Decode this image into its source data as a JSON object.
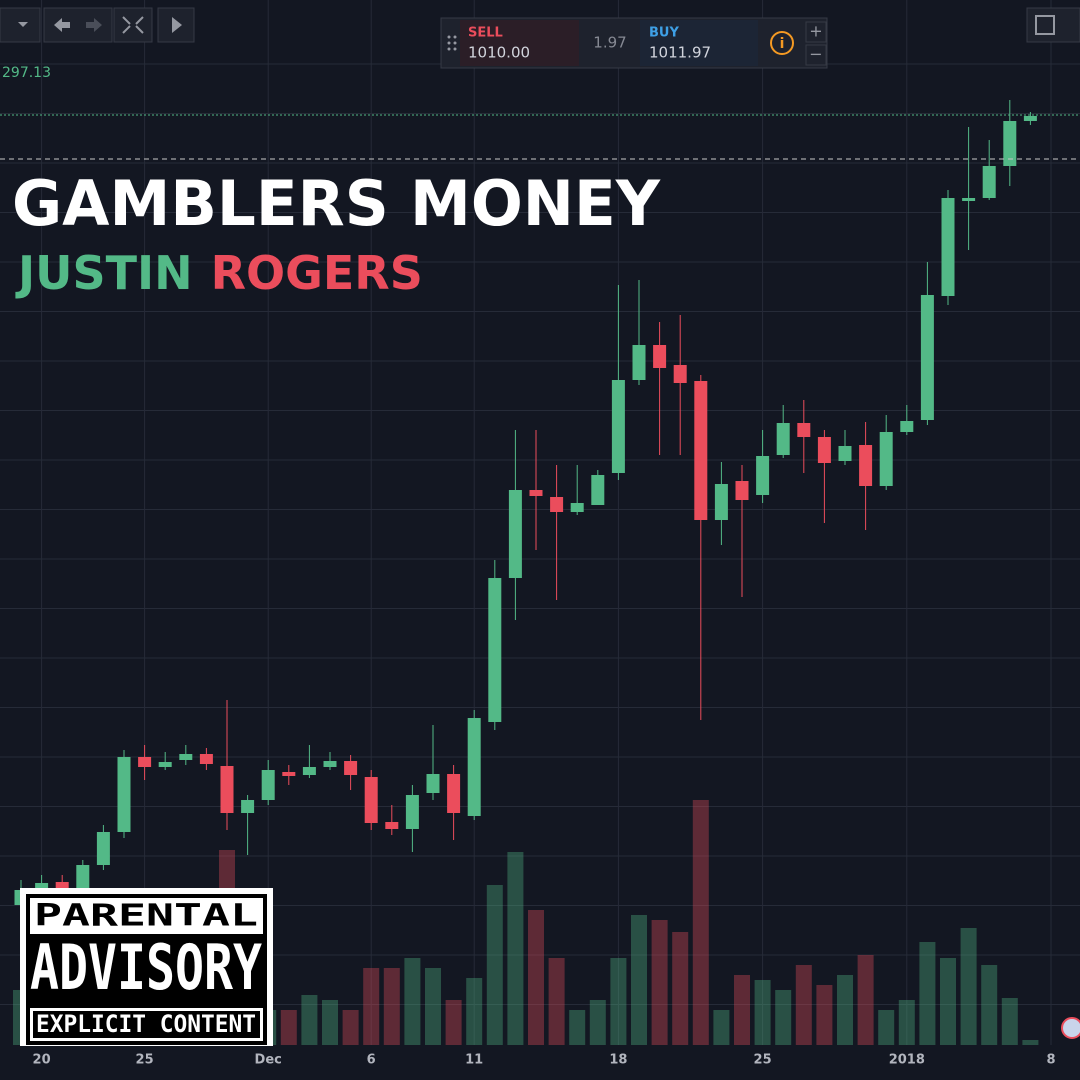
{
  "toolbar": {
    "sell_label": "SELL",
    "sell_price": "1010.00",
    "spread": "1.97",
    "buy_label": "BUY",
    "buy_price": "1011.97",
    "plus": "+",
    "minus": "−"
  },
  "price_label": "297.13",
  "cover": {
    "title": "GAMBLERS MONEY",
    "artist_first": "JUSTIN",
    "artist_last": "ROGERS",
    "advisory": [
      "PARENTAL",
      "ADVISORY",
      "EXPLICIT CONTENT"
    ]
  },
  "chart_data": {
    "type": "candlestick",
    "categories": [
      null,
      "20",
      null,
      null,
      null,
      null,
      "25",
      null,
      null,
      null,
      null,
      null,
      "Dec",
      null,
      null,
      null,
      null,
      "6",
      null,
      null,
      null,
      null,
      "11",
      null,
      null,
      null,
      null,
      null,
      null,
      "18",
      null,
      null,
      null,
      null,
      null,
      null,
      "25",
      null,
      null,
      null,
      null,
      null,
      null,
      "2018",
      null,
      null,
      null,
      null,
      null,
      null,
      "8"
    ],
    "open": [
      13.5,
      15,
      15.8,
      15.2,
      17.5,
      20.8,
      28.3,
      27.3,
      28,
      28.6,
      27.4,
      22.7,
      24,
      26.8,
      26.5,
      27.3,
      27.9,
      26.3,
      21.8,
      21.1,
      24.7,
      26.6,
      22.4,
      31.8,
      46.2,
      55,
      54.3,
      52.8,
      53.5,
      56.7,
      66,
      69.5,
      67.5,
      65.9,
      52,
      55.9,
      54.5,
      58.5,
      61.7,
      60.3,
      57.9,
      59.5,
      55.4,
      60.8,
      62,
      74.4,
      83.9,
      84.2,
      87.4,
      91.9,
      null
    ],
    "high": [
      16,
      16.5,
      16.5,
      18,
      21.5,
      29,
      29.5,
      28.8,
      29.5,
      29.2,
      34,
      24.5,
      28,
      27.5,
      29.5,
      28.8,
      28.5,
      27,
      23.5,
      25.5,
      31.5,
      27.5,
      33,
      48,
      61,
      61,
      57.5,
      57.5,
      57,
      75.5,
      76,
      71.8,
      72.5,
      66.5,
      57.8,
      57.5,
      61,
      63.5,
      64,
      61,
      61,
      61.8,
      62.5,
      63.5,
      77.8,
      85,
      91.3,
      90,
      94,
      92.8,
      null
    ],
    "low": [
      12.5,
      14.5,
      14.5,
      14.5,
      17,
      20.2,
      26,
      27,
      27.5,
      27,
      21,
      18.5,
      23.5,
      25.5,
      26.2,
      27,
      25,
      21,
      20.5,
      18.8,
      24,
      20,
      22,
      31,
      42,
      49,
      44,
      52.5,
      53.5,
      56,
      65.5,
      58.5,
      58.5,
      32,
      49.5,
      44.3,
      53.7,
      58.2,
      56.7,
      51.7,
      57.5,
      51,
      55,
      60.5,
      61.5,
      73.5,
      79,
      84,
      85.4,
      91.5,
      null
    ],
    "close": [
      15,
      15.7,
      15.2,
      17.5,
      20.8,
      28.3,
      27.3,
      27.8,
      28.6,
      27.6,
      22.7,
      24,
      27,
      26.4,
      27.3,
      27.9,
      26.5,
      21.7,
      21.1,
      24.5,
      26.6,
      22.7,
      32.2,
      46.2,
      55,
      54.4,
      52.8,
      53.7,
      56.5,
      66,
      69.5,
      67.2,
      65.7,
      52,
      55.6,
      54,
      58.4,
      61.7,
      60.3,
      57.7,
      59.4,
      55.4,
      60.8,
      61.9,
      74.5,
      84.2,
      84.2,
      87.4,
      91.9,
      92.4,
      null
    ],
    "volume": [
      5.5,
      4.5,
      5.5,
      7,
      8.5,
      10.5,
      11.5,
      8.5,
      6.5,
      5.5,
      19.5,
      8.5,
      3.5,
      3.5,
      5,
      4.5,
      3.5,
      7.7,
      7.7,
      8.7,
      7.7,
      4.5,
      6.7,
      16,
      19.3,
      13.5,
      8.7,
      3.5,
      4.5,
      8.7,
      13,
      12.5,
      11.3,
      24.5,
      3.5,
      7,
      6.5,
      5.5,
      8,
      6,
      7,
      9,
      3.5,
      4.5,
      10.3,
      8.7,
      11.7,
      8,
      4.7,
      0.5,
      null
    ],
    "ylim": [
      0,
      100
    ],
    "vlim": [
      0,
      100
    ],
    "up_color": "#53b987",
    "down_color": "#eb4d5c",
    "grid": true
  }
}
